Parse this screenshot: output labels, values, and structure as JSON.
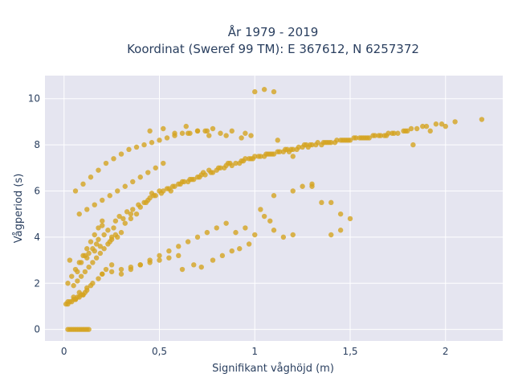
{
  "chart_data": {
    "type": "scatter",
    "title_lines": [
      "År 1979 - 2019",
      "Koordinat (Sweref 99 TM): E 367612, N 6257372"
    ],
    "xlabel": "Signifikant våghöjd (m)",
    "ylabel": "Vågperiod (s)",
    "xlim": [
      -0.1,
      2.3
    ],
    "ylim": [
      -0.5,
      11
    ],
    "xticks": [
      0,
      0.5,
      1,
      1.5,
      2
    ],
    "xtick_labels": [
      "0",
      "0,5",
      "1",
      "1,5",
      "2"
    ],
    "yticks": [
      0,
      2,
      4,
      6,
      8,
      10
    ],
    "ytick_labels": [
      "0",
      "2",
      "4",
      "6",
      "8",
      "10"
    ],
    "grid": true,
    "legend": "none",
    "colors": {
      "point": "#D4A420",
      "plot_bg": "#E5E5F0",
      "grid": "#FFFFFF",
      "text": "#2A3F5F"
    },
    "series": [
      {
        "values_x": [
          0.02,
          0.05,
          0.08,
          0.1,
          0.12,
          0.03,
          0.06,
          0.09,
          0.11,
          0.04,
          0.07,
          0.13,
          0.02,
          0.05,
          0.08,
          0.12,
          0.15,
          0.18,
          0.2,
          0.1,
          0.06,
          0.14,
          0.22,
          0.25,
          0.03,
          0.07,
          0.11,
          0.16,
          0.19,
          0.24,
          0.28,
          0.3,
          0.09,
          0.13,
          0.17,
          0.21,
          0.26,
          0.32,
          0.35,
          0.38,
          0.12,
          0.18,
          0.23,
          0.27,
          0.33,
          0.4,
          0.42,
          0.45,
          0.15,
          0.2,
          0.29,
          0.36,
          0.44,
          0.48,
          0.5,
          0.55,
          0.25,
          0.31,
          0.39,
          0.46,
          0.52,
          0.58,
          0.6,
          0.62,
          0.35,
          0.43,
          0.51,
          0.57,
          0.65,
          0.68,
          0.7,
          0.72,
          0.47,
          0.54,
          0.61,
          0.67,
          0.74,
          0.78,
          0.8,
          0.82,
          0.56,
          0.63,
          0.71,
          0.77,
          0.84,
          0.88,
          0.9,
          0.92,
          0.66,
          0.73,
          0.81,
          0.87,
          0.94,
          0.98,
          1.0,
          1.02,
          0.76,
          0.85,
          0.93,
          0.99,
          1.05,
          1.08,
          1.1,
          1.12,
          0.86,
          0.95,
          1.03,
          1.09,
          1.15,
          1.18,
          1.2,
          1.22,
          0.97,
          1.06,
          1.13,
          1.19,
          1.25,
          1.28,
          1.3,
          1.32,
          1.07,
          1.16,
          1.23,
          1.29,
          1.35,
          1.38,
          1.4,
          1.42,
          1.17,
          1.26,
          1.33,
          1.39,
          1.45,
          1.48,
          1.5,
          1.52,
          1.27,
          1.36,
          1.43,
          1.49,
          1.55,
          1.58,
          1.6,
          1.62,
          1.37,
          1.46,
          1.53,
          1.59,
          1.65,
          1.68,
          1.7,
          1.72,
          1.47,
          1.56,
          1.63,
          1.69,
          1.75,
          1.78,
          1.8,
          1.82,
          1.57,
          1.66,
          1.73,
          1.79,
          1.85,
          1.88,
          1.9,
          1.95,
          2.0,
          2.05,
          2.19,
          1.83,
          1.92,
          1.98,
          0.01,
          0.02,
          0.03,
          0.04,
          0.05,
          0.06,
          0.07,
          0.08,
          0.09,
          0.1,
          0.11,
          0.12,
          0.02,
          0.04,
          0.06,
          0.08,
          0.1,
          0.12,
          0.14,
          0.16,
          0.18,
          0.2,
          0.3,
          0.35,
          0.4,
          0.45,
          0.5,
          0.55,
          0.6,
          0.65,
          0.7,
          0.75,
          0.8,
          0.85,
          0.62,
          0.68,
          0.72,
          0.78,
          0.83,
          0.88,
          0.92,
          0.97,
          0.65,
          0.75,
          0.85,
          0.95,
          0.98,
          1.0,
          1.05,
          1.1,
          1.12,
          1.2,
          1.3,
          1.4,
          1.45,
          1.5,
          0.45,
          0.52,
          0.58,
          0.64,
          0.7,
          0.76,
          0.82,
          0.88,
          0.93,
          0.2,
          0.25,
          0.3,
          0.35,
          0.4,
          0.45,
          0.5,
          0.55,
          0.6,
          0.08,
          0.12,
          0.16,
          0.2,
          0.24,
          0.28,
          0.32,
          0.36,
          0.4,
          0.44,
          0.48,
          0.52,
          0.05,
          0.07,
          0.09,
          0.11,
          0.13,
          0.15,
          0.17,
          0.19,
          0.21,
          0.23,
          0.25,
          0.27,
          0.06,
          0.1,
          0.14,
          0.18,
          0.22,
          0.26,
          0.3,
          0.34,
          0.38,
          0.42,
          0.46,
          0.5,
          0.54,
          0.58,
          0.62,
          0.66,
          0.7,
          0.74,
          0.78,
          0.9,
          0.95,
          1.0,
          1.03,
          1.05,
          1.08,
          1.1,
          1.15,
          1.2,
          1.1,
          1.2,
          1.25,
          1.3,
          1.35,
          1.4,
          1.45
        ],
        "values_y": [
          0.0,
          0.0,
          0.0,
          0.0,
          0.0,
          0.0,
          0.0,
          0.0,
          0.0,
          0.0,
          0.0,
          0.0,
          1.2,
          1.4,
          1.6,
          1.8,
          2.0,
          2.2,
          2.4,
          1.5,
          1.3,
          1.9,
          2.6,
          2.8,
          3.0,
          2.5,
          3.2,
          3.4,
          3.6,
          3.8,
          4.0,
          4.2,
          2.9,
          3.3,
          3.7,
          4.1,
          4.4,
          4.6,
          4.8,
          5.0,
          3.1,
          3.9,
          4.3,
          4.7,
          5.1,
          5.3,
          5.5,
          5.7,
          3.5,
          4.5,
          4.9,
          5.2,
          5.6,
          5.8,
          6.0,
          6.1,
          4.0,
          4.8,
          5.4,
          5.9,
          6.0,
          6.2,
          6.3,
          6.4,
          5.0,
          5.5,
          5.9,
          6.2,
          6.4,
          6.5,
          6.6,
          6.7,
          5.8,
          6.1,
          6.3,
          6.5,
          6.7,
          6.8,
          6.9,
          7.0,
          6.0,
          6.4,
          6.6,
          6.8,
          7.0,
          7.1,
          7.2,
          7.2,
          6.5,
          6.8,
          7.0,
          7.2,
          7.3,
          7.4,
          7.5,
          7.5,
          6.9,
          7.1,
          7.3,
          7.4,
          7.5,
          7.6,
          7.6,
          7.7,
          7.2,
          7.4,
          7.5,
          7.6,
          7.7,
          7.7,
          7.8,
          7.8,
          7.4,
          7.6,
          7.7,
          7.8,
          7.9,
          7.9,
          8.0,
          8.0,
          7.6,
          7.8,
          7.9,
          8.0,
          8.0,
          8.1,
          8.1,
          8.1,
          7.8,
          8.0,
          8.1,
          8.1,
          8.2,
          8.2,
          8.2,
          8.3,
          8.0,
          8.1,
          8.2,
          8.2,
          8.3,
          8.3,
          8.3,
          8.4,
          8.1,
          8.2,
          8.3,
          8.3,
          8.4,
          8.4,
          8.5,
          8.5,
          8.2,
          8.3,
          8.4,
          8.4,
          8.5,
          8.6,
          8.6,
          8.7,
          8.3,
          8.4,
          8.5,
          8.6,
          8.7,
          8.8,
          8.8,
          8.9,
          8.8,
          9.0,
          9.1,
          8.0,
          8.6,
          8.9,
          1.1,
          1.1,
          1.2,
          1.2,
          1.3,
          1.3,
          1.4,
          1.4,
          1.5,
          1.5,
          1.6,
          1.7,
          2.0,
          2.3,
          2.6,
          2.9,
          3.2,
          3.5,
          3.8,
          4.1,
          4.4,
          4.7,
          2.4,
          2.6,
          2.8,
          3.0,
          3.2,
          3.4,
          3.6,
          3.8,
          4.0,
          4.2,
          4.4,
          4.6,
          2.6,
          2.8,
          2.7,
          3.0,
          3.2,
          3.4,
          3.5,
          3.7,
          8.5,
          8.6,
          8.4,
          8.5,
          8.4,
          10.3,
          10.4,
          10.3,
          8.2,
          7.5,
          6.2,
          5.5,
          5.0,
          4.8,
          8.6,
          8.7,
          8.5,
          8.8,
          8.6,
          8.4,
          8.5,
          8.6,
          8.3,
          2.4,
          2.5,
          2.6,
          2.7,
          2.8,
          2.9,
          3.0,
          3.1,
          3.2,
          5.0,
          5.2,
          5.4,
          5.6,
          5.8,
          6.0,
          6.2,
          6.4,
          6.6,
          6.8,
          7.0,
          7.2,
          1.9,
          2.1,
          2.3,
          2.5,
          2.7,
          2.9,
          3.1,
          3.3,
          3.5,
          3.7,
          3.9,
          4.1,
          6.0,
          6.3,
          6.6,
          6.9,
          7.2,
          7.4,
          7.6,
          7.8,
          7.9,
          8.0,
          8.1,
          8.2,
          8.3,
          8.4,
          8.5,
          8.5,
          8.6,
          8.6,
          8.7,
          4.2,
          4.4,
          4.1,
          5.2,
          4.9,
          4.7,
          4.3,
          4.0,
          4.1,
          5.8,
          6.0,
          6.2,
          6.3,
          5.5,
          4.1,
          4.3
        ]
      }
    ]
  }
}
